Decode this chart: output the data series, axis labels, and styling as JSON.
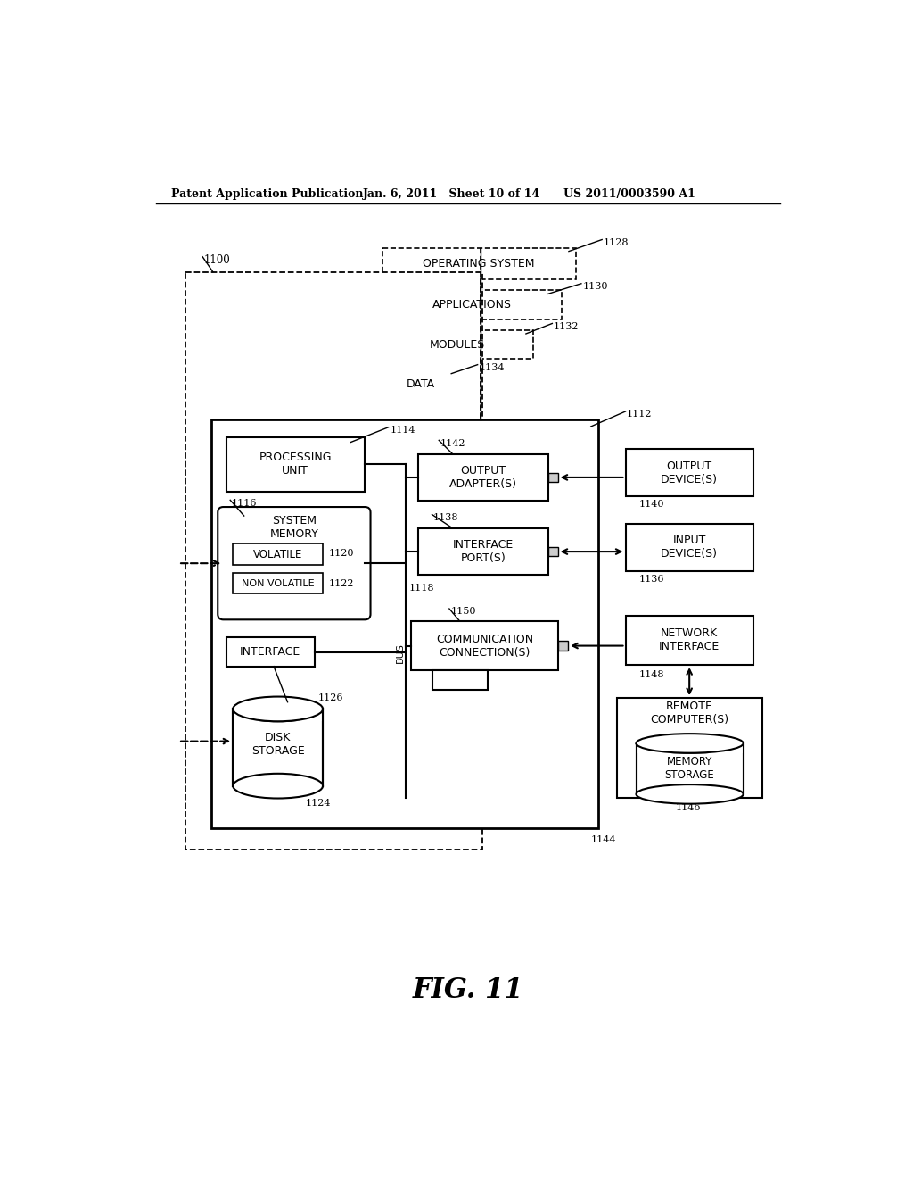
{
  "bg_color": "#ffffff",
  "header_left": "Patent Application Publication",
  "header_mid": "Jan. 6, 2011   Sheet 10 of 14",
  "header_right": "US 2011/0003590 A1",
  "fig_label": "FIG. 11"
}
